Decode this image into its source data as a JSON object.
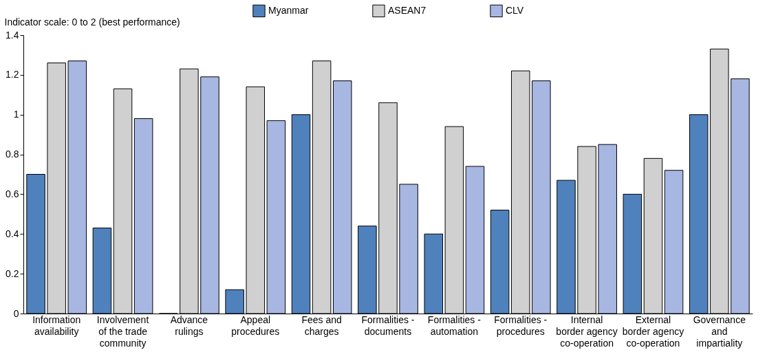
{
  "chart_data": {
    "type": "bar",
    "ylabel": "Indicator scale: 0 to 2 (best performance)",
    "categories": [
      "Information availability",
      "Involvement of the trade community",
      "Advance rulings",
      "Appeal procedures",
      "Fees and charges",
      "Formalities - documents",
      "Formalities - automation",
      "Formalities - procedures",
      "Internal border agency co-operation",
      "External border agency co-operation",
      "Governance and impartiality"
    ],
    "series": [
      {
        "name": "Myanmar",
        "color": "#4f81bd",
        "values": [
          0.7,
          0.43,
          0,
          0.12,
          1.0,
          0.44,
          0.4,
          0.52,
          0.67,
          0.6,
          1.0
        ]
      },
      {
        "name": "ASEAN7",
        "color": "#d0d0d0",
        "values": [
          1.26,
          1.13,
          1.23,
          1.14,
          1.27,
          1.06,
          0.94,
          1.22,
          0.84,
          0.78,
          1.33
        ]
      },
      {
        "name": "CLV",
        "color": "#a7b7e2",
        "values": [
          1.27,
          0.98,
          1.19,
          0.97,
          1.17,
          0.65,
          0.74,
          1.17,
          0.85,
          0.72,
          1.18
        ]
      }
    ],
    "ylim": [
      0,
      1.4
    ],
    "yticks": [
      0,
      0.2,
      0.4,
      0.6,
      0.8,
      1,
      1.2,
      1.4
    ],
    "grid": false,
    "legend": "top"
  }
}
